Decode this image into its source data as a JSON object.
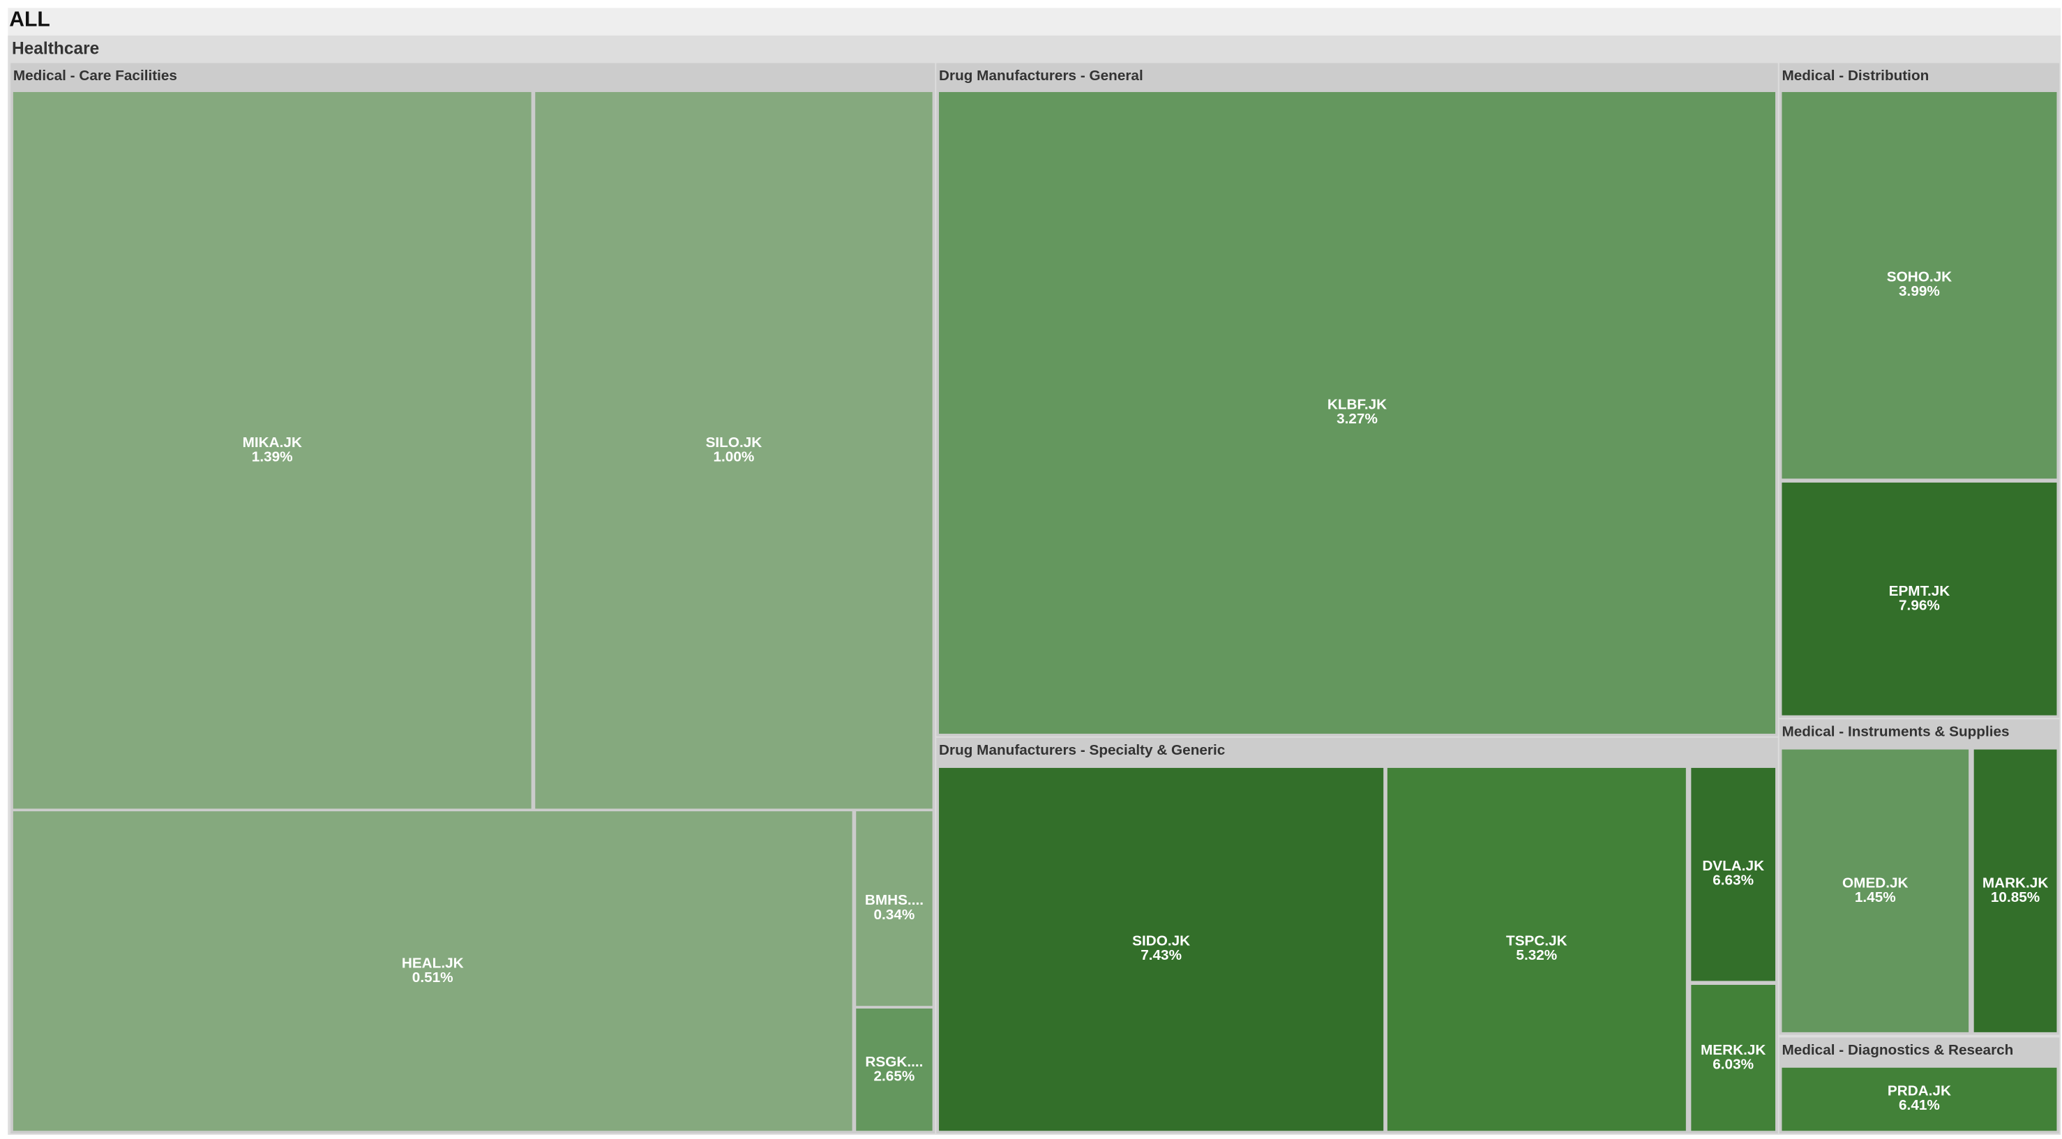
{
  "chart_data": {
    "type": "treemap",
    "root": "ALL",
    "sector": "Healthcare",
    "groups": [
      {
        "name": "Medical - Care Facilities",
        "tiles": [
          {
            "ticker": "MIKA.JK",
            "label": "MIKA.JK",
            "change": "1.39%",
            "color": "#85a97e"
          },
          {
            "ticker": "SILO.JK",
            "label": "SILO.JK",
            "change": "1.00%",
            "color": "#85a97e"
          },
          {
            "ticker": "HEAL.JK",
            "label": "HEAL.JK",
            "change": "0.51%",
            "color": "#85a97e"
          },
          {
            "ticker": "BMHS.JK",
            "label": "BMHS....",
            "change": "0.34%",
            "color": "#85a97e"
          },
          {
            "ticker": "RSGK.JK",
            "label": "RSGK....",
            "change": "2.65%",
            "color": "#64975e"
          }
        ]
      },
      {
        "name": "Drug Manufacturers - General",
        "tiles": [
          {
            "ticker": "KLBF.JK",
            "label": "KLBF.JK",
            "change": "3.27%",
            "color": "#64975e"
          }
        ]
      },
      {
        "name": "Drug Manufacturers - Specialty & Generic",
        "tiles": [
          {
            "ticker": "SIDO.JK",
            "label": "SIDO.JK",
            "change": "7.43%",
            "color": "#336f2a"
          },
          {
            "ticker": "TSPC.JK",
            "label": "TSPC.JK",
            "change": "5.32%",
            "color": "#428138"
          },
          {
            "ticker": "DVLA.JK",
            "label": "DVLA.JK",
            "change": "6.63%",
            "color": "#336f2a"
          },
          {
            "ticker": "MERK.JK",
            "label": "MERK.JK",
            "change": "6.03%",
            "color": "#428138"
          }
        ]
      },
      {
        "name": "Medical - Distribution",
        "tiles": [
          {
            "ticker": "SOHO.JK",
            "label": "SOHO.JK",
            "change": "3.99%",
            "color": "#64975e"
          },
          {
            "ticker": "EPMT.JK",
            "label": "EPMT.JK",
            "change": "7.96%",
            "color": "#336f2a"
          }
        ]
      },
      {
        "name": "Medical - Instruments & Supplies",
        "tiles": [
          {
            "ticker": "OMED.JK",
            "label": "OMED.JK",
            "change": "1.45%",
            "color": "#64975e"
          },
          {
            "ticker": "MARK.JK",
            "label": "MARK.JK",
            "change": "10.85%",
            "color": "#336f2a"
          }
        ]
      },
      {
        "name": "Medical - Diagnostics & Research",
        "tiles": [
          {
            "ticker": "PRDA.JK",
            "label": "PRDA.JK",
            "change": "6.41%",
            "color": "#428138"
          }
        ]
      }
    ]
  }
}
